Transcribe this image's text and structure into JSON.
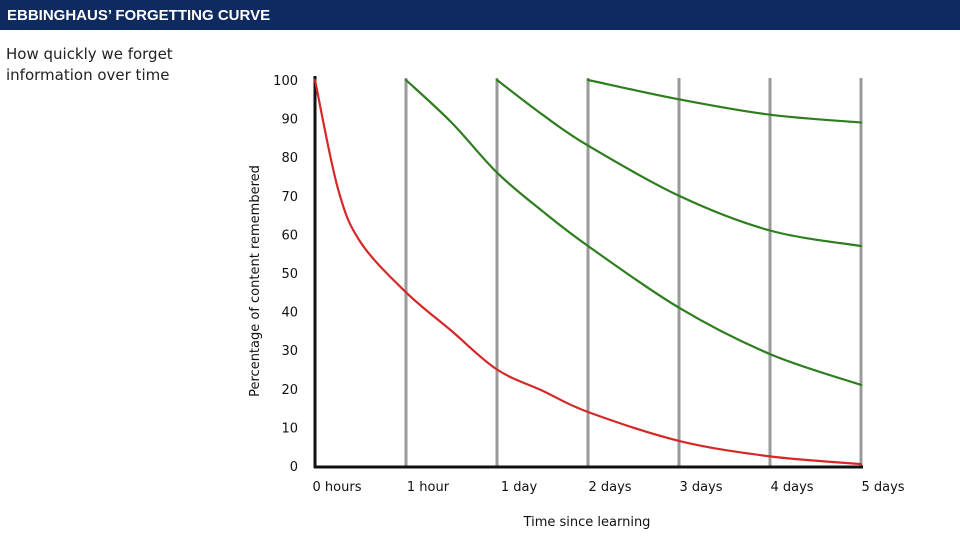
{
  "header": {
    "title": "EBBINGHAUS’ FORGETTING CURVE",
    "background": "#0f2a5f"
  },
  "subtitle": "How quickly we forget information over time",
  "chart_data": {
    "type": "line",
    "xlabel": "Time since learning",
    "ylabel": "Percentage of content remembered",
    "categories": [
      "0 hours",
      "1 hour",
      "1 day",
      "2 days",
      "3 days",
      "4 days",
      "5 days"
    ],
    "y_ticks": [
      0,
      10,
      20,
      30,
      40,
      50,
      60,
      70,
      80,
      90,
      100
    ],
    "ylim": [
      0,
      100
    ],
    "grid": "vertical lines at each time category",
    "grid_color": "#9a9a9a",
    "series": [
      {
        "color": "#d62828",
        "points": [
          [
            0,
            100
          ],
          [
            0.25,
            72
          ],
          [
            0.5,
            58
          ],
          [
            1,
            45
          ],
          [
            1.5,
            35
          ],
          [
            2,
            25
          ],
          [
            2.5,
            19.5
          ],
          [
            3,
            14
          ],
          [
            4,
            6.5
          ],
          [
            5,
            2.5
          ],
          [
            6,
            0.5
          ]
        ]
      },
      {
        "color": "#2e7d1f",
        "points": [
          [
            1,
            100
          ],
          [
            1.5,
            89
          ],
          [
            2,
            76
          ],
          [
            2.5,
            66
          ],
          [
            3,
            57
          ],
          [
            4,
            41
          ],
          [
            5,
            29
          ],
          [
            6,
            21
          ]
        ]
      },
      {
        "color": "#2e7d1f",
        "points": [
          [
            2,
            100
          ],
          [
            2.5,
            91
          ],
          [
            3,
            83
          ],
          [
            4,
            70
          ],
          [
            5,
            61
          ],
          [
            6,
            57
          ]
        ]
      },
      {
        "color": "#2e7d1f",
        "points": [
          [
            3,
            100
          ],
          [
            4,
            95
          ],
          [
            5,
            91
          ],
          [
            6,
            89
          ]
        ]
      }
    ]
  }
}
